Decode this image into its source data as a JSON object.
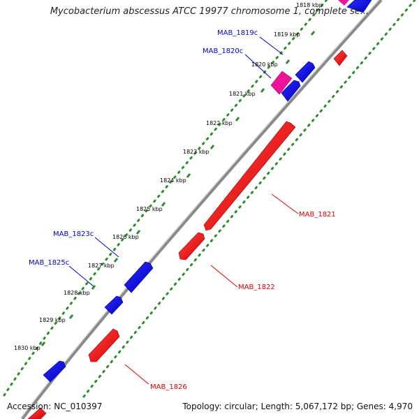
{
  "title": "Mycobacterium abscessus ATCC 19977 chromosome 1, complete se...",
  "accession_label": "Accession: NC_010397",
  "summary_label": "Topology: circular; Length: 5,067,172 bp; Genes: 4,970",
  "colors": {
    "backbone": "#8a8a8a",
    "scale_dots": "#2e8b2e",
    "gene_forward": "#0000ee",
    "gene_reverse": "#ff0000",
    "gene_highlight": "#ee1199",
    "label_forward": "#0000cc",
    "label_reverse": "#dd0000",
    "tick_text": "#000000"
  },
  "ticks": [
    "1818 kbp",
    "1819 kbp",
    "1820 kbp",
    "1821 kbp",
    "1822 kbp",
    "1823 kbp",
    "1824 kbp",
    "1825 kbp",
    "1826 kbp",
    "1827 kbp",
    "1828 kbp",
    "1829 kbp",
    "1830 kbp"
  ],
  "gene_labels": [
    "MAB_1819c",
    "MAB_1820c",
    "MAB_1823c",
    "MAB_1825c",
    "MAB_1821",
    "MAB_1822",
    "MAB_1826"
  ]
}
